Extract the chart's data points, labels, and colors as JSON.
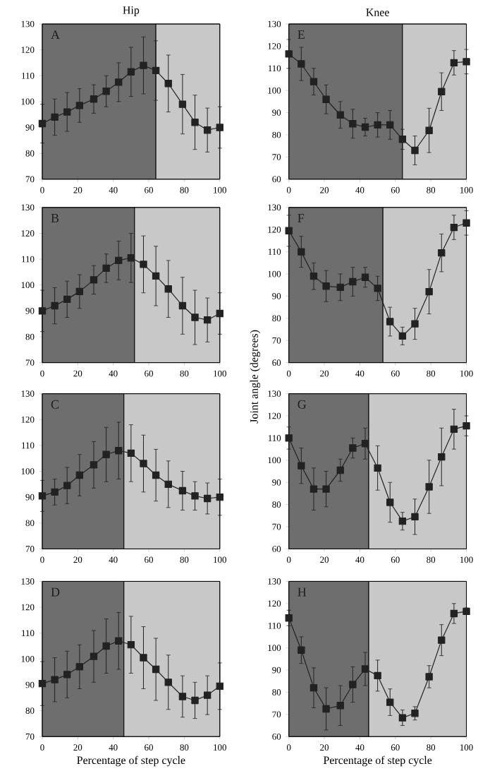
{
  "chart_data": [
    {
      "type": "line",
      "title": "Hip",
      "annotations": [
        "A"
      ],
      "x": [
        0,
        7,
        14,
        21,
        29,
        36,
        43,
        50,
        57,
        64,
        71,
        79,
        86,
        93,
        100
      ],
      "marker": "square",
      "line_style": "solid",
      "series": [
        {
          "color": "#222222",
          "values": [
            91.5,
            94,
            96,
            98.5,
            101,
            104,
            107.5,
            111.5,
            114,
            112,
            107,
            99,
            92,
            89,
            90
          ],
          "errors": [
            7.5,
            7,
            7.5,
            6.5,
            5.5,
            6,
            7.5,
            9.5,
            11,
            11.5,
            11,
            11.5,
            10.5,
            8.5,
            8
          ]
        }
      ],
      "bands": [
        {
          "axis": "x",
          "from": 0,
          "to": 64,
          "color": "#6e6e6e"
        },
        {
          "axis": "x",
          "from": 64,
          "to": 100,
          "color": "#c8c8c8"
        }
      ],
      "xlim": [
        0,
        100
      ],
      "ylim": [
        70,
        130
      ],
      "xticks": [
        0,
        20,
        40,
        60,
        80,
        100
      ],
      "yticks": [
        70,
        80,
        90,
        100,
        110,
        120,
        130
      ]
    },
    {
      "type": "line",
      "annotations": [
        "B"
      ],
      "x": [
        0,
        7,
        14,
        21,
        29,
        36,
        43,
        50,
        57,
        64,
        71,
        79,
        86,
        93,
        100
      ],
      "marker": "square",
      "line_style": "solid",
      "series": [
        {
          "color": "#222222",
          "values": [
            90,
            92,
            94.5,
            97.5,
            102,
            106.5,
            109.5,
            110.5,
            108,
            103.5,
            98.5,
            92,
            87.5,
            86.5,
            89
          ],
          "errors": [
            8,
            7,
            7,
            6.5,
            5.5,
            5.5,
            7.5,
            9.5,
            11,
            11.5,
            11,
            11,
            10.5,
            8.5,
            8
          ]
        }
      ],
      "bands": [
        {
          "axis": "x",
          "from": 0,
          "to": 52,
          "color": "#6e6e6e"
        },
        {
          "axis": "x",
          "from": 52,
          "to": 100,
          "color": "#c8c8c8"
        }
      ],
      "xlim": [
        0,
        100
      ],
      "ylim": [
        70,
        130
      ],
      "xticks": [
        0,
        20,
        40,
        60,
        80,
        100
      ],
      "yticks": [
        70,
        80,
        90,
        100,
        110,
        120,
        130
      ]
    },
    {
      "type": "line",
      "annotations": [
        "C"
      ],
      "x": [
        0,
        7,
        14,
        21,
        29,
        36,
        43,
        50,
        57,
        64,
        71,
        79,
        86,
        93,
        100
      ],
      "marker": "square",
      "line_style": "solid",
      "series": [
        {
          "color": "#222222",
          "values": [
            90.5,
            92,
            94.5,
            98.5,
            102.5,
            106.5,
            108,
            107,
            103,
            98.5,
            95,
            92.5,
            90.5,
            89.5,
            90
          ],
          "errors": [
            6,
            5,
            7,
            8,
            9,
            10.5,
            11,
            11,
            11,
            10,
            9,
            7.5,
            5.5,
            6,
            7
          ]
        }
      ],
      "bands": [
        {
          "axis": "x",
          "from": 0,
          "to": 46,
          "color": "#6e6e6e"
        },
        {
          "axis": "x",
          "from": 46,
          "to": 100,
          "color": "#c8c8c8"
        }
      ],
      "xlim": [
        0,
        100
      ],
      "ylim": [
        70,
        130
      ],
      "xticks": [
        0,
        20,
        40,
        60,
        80,
        100
      ],
      "yticks": [
        70,
        80,
        90,
        100,
        110,
        120,
        130
      ]
    },
    {
      "type": "line",
      "xlabel": "Percentage of step cycle",
      "annotations": [
        "D"
      ],
      "x": [
        0,
        7,
        14,
        21,
        29,
        36,
        43,
        50,
        57,
        64,
        71,
        79,
        86,
        93,
        100
      ],
      "marker": "square",
      "line_style": "solid",
      "series": [
        {
          "color": "#222222",
          "values": [
            90.5,
            92,
            94,
            97,
            101,
            105,
            107,
            105.5,
            100.5,
            96,
            91,
            85.5,
            84,
            86,
            89.5
          ],
          "errors": [
            8.5,
            8.5,
            9,
            8.5,
            10,
            10.5,
            11,
            11,
            12,
            12,
            10.5,
            8,
            7,
            7.5,
            9
          ]
        }
      ],
      "bands": [
        {
          "axis": "x",
          "from": 0,
          "to": 46,
          "color": "#6e6e6e"
        },
        {
          "axis": "x",
          "from": 46,
          "to": 100,
          "color": "#c8c8c8"
        }
      ],
      "xlim": [
        0,
        100
      ],
      "ylim": [
        70,
        130
      ],
      "xticks": [
        0,
        20,
        40,
        60,
        80,
        100
      ],
      "yticks": [
        70,
        80,
        90,
        100,
        110,
        120,
        130
      ]
    },
    {
      "type": "line",
      "title": "Knee",
      "annotations": [
        "E"
      ],
      "x": [
        0,
        7,
        14,
        21,
        29,
        36,
        43,
        50,
        57,
        64,
        71,
        79,
        86,
        93,
        100
      ],
      "marker": "square",
      "line_style": "solid",
      "series": [
        {
          "color": "#222222",
          "values": [
            116.5,
            112,
            104,
            96,
            89,
            85,
            83.5,
            84.5,
            84.5,
            78,
            73,
            82,
            99.5,
            112.5,
            113
          ],
          "errors": [
            6.5,
            7.5,
            6,
            6.5,
            6,
            6.5,
            4,
            5.5,
            6.5,
            4.5,
            6.5,
            10,
            8.5,
            5.5,
            5.5
          ]
        }
      ],
      "bands": [
        {
          "axis": "x",
          "from": 0,
          "to": 64,
          "color": "#6e6e6e"
        },
        {
          "axis": "x",
          "from": 64,
          "to": 100,
          "color": "#c8c8c8"
        }
      ],
      "xlim": [
        0,
        100
      ],
      "ylim": [
        60,
        130
      ],
      "xticks": [
        0,
        20,
        40,
        60,
        80,
        100
      ],
      "yticks": [
        60,
        70,
        80,
        90,
        100,
        110,
        120,
        130
      ]
    },
    {
      "type": "line",
      "ylabel": "Joint angle (degrees)",
      "annotations": [
        "F"
      ],
      "x": [
        0,
        7,
        14,
        21,
        29,
        36,
        43,
        50,
        57,
        64,
        71,
        79,
        86,
        93,
        100
      ],
      "marker": "square",
      "line_style": "solid",
      "series": [
        {
          "color": "#222222",
          "values": [
            119.5,
            110,
            99,
            94.5,
            94,
            96.5,
            98.5,
            93.5,
            78.5,
            72,
            77.5,
            92,
            109.5,
            121,
            123
          ],
          "errors": [
            7,
            7,
            6,
            7,
            6,
            6.5,
            4.5,
            5.5,
            6.5,
            4,
            7,
            10,
            8.5,
            5.5,
            5.5
          ]
        }
      ],
      "bands": [
        {
          "axis": "x",
          "from": 0,
          "to": 53,
          "color": "#6e6e6e"
        },
        {
          "axis": "x",
          "from": 53,
          "to": 100,
          "color": "#c8c8c8"
        }
      ],
      "xlim": [
        0,
        100
      ],
      "ylim": [
        60,
        130
      ],
      "xticks": [
        0,
        20,
        40,
        60,
        80,
        100
      ],
      "yticks": [
        60,
        70,
        80,
        90,
        100,
        110,
        120,
        130
      ]
    },
    {
      "type": "line",
      "annotations": [
        "G"
      ],
      "x": [
        0,
        7,
        14,
        21,
        29,
        36,
        43,
        50,
        57,
        64,
        71,
        79,
        86,
        93,
        100
      ],
      "marker": "square",
      "line_style": "solid",
      "series": [
        {
          "color": "#222222",
          "values": [
            110,
            97.5,
            87,
            87,
            95.5,
            105.5,
            107.5,
            96.5,
            81,
            72.5,
            74.5,
            88,
            101.5,
            114,
            115.5
          ],
          "errors": [
            5,
            8,
            9.5,
            8,
            5,
            4.5,
            7,
            10,
            9,
            4,
            8,
            12,
            13,
            9,
            4.5
          ]
        }
      ],
      "bands": [
        {
          "axis": "x",
          "from": 0,
          "to": 45,
          "color": "#6e6e6e"
        },
        {
          "axis": "x",
          "from": 45,
          "to": 100,
          "color": "#c8c8c8"
        }
      ],
      "xlim": [
        0,
        100
      ],
      "ylim": [
        60,
        130
      ],
      "xticks": [
        0,
        20,
        40,
        60,
        80,
        100
      ],
      "yticks": [
        60,
        70,
        80,
        90,
        100,
        110,
        120,
        130
      ]
    },
    {
      "type": "line",
      "xlabel": "Percentage of step cycle",
      "annotations": [
        "H"
      ],
      "x": [
        0,
        7,
        14,
        21,
        29,
        36,
        43,
        50,
        57,
        64,
        71,
        79,
        86,
        93,
        100
      ],
      "marker": "square",
      "line_style": "solid",
      "series": [
        {
          "color": "#222222",
          "values": [
            113.5,
            99,
            82,
            72.5,
            74,
            83.5,
            90.5,
            87.5,
            75.5,
            68.5,
            70.5,
            87,
            103.5,
            115.5,
            116.5
          ],
          "errors": [
            3.5,
            6,
            9,
            9.5,
            9,
            8,
            7.5,
            7,
            6,
            3.5,
            3,
            5,
            7,
            4.5,
            1.5
          ]
        }
      ],
      "bands": [
        {
          "axis": "x",
          "from": 0,
          "to": 45,
          "color": "#6e6e6e"
        },
        {
          "axis": "x",
          "from": 45,
          "to": 100,
          "color": "#c8c8c8"
        }
      ],
      "xlim": [
        0,
        100
      ],
      "ylim": [
        60,
        130
      ],
      "xticks": [
        0,
        20,
        40,
        60,
        80,
        100
      ],
      "yticks": [
        60,
        70,
        80,
        90,
        100,
        110,
        120,
        130
      ]
    }
  ]
}
